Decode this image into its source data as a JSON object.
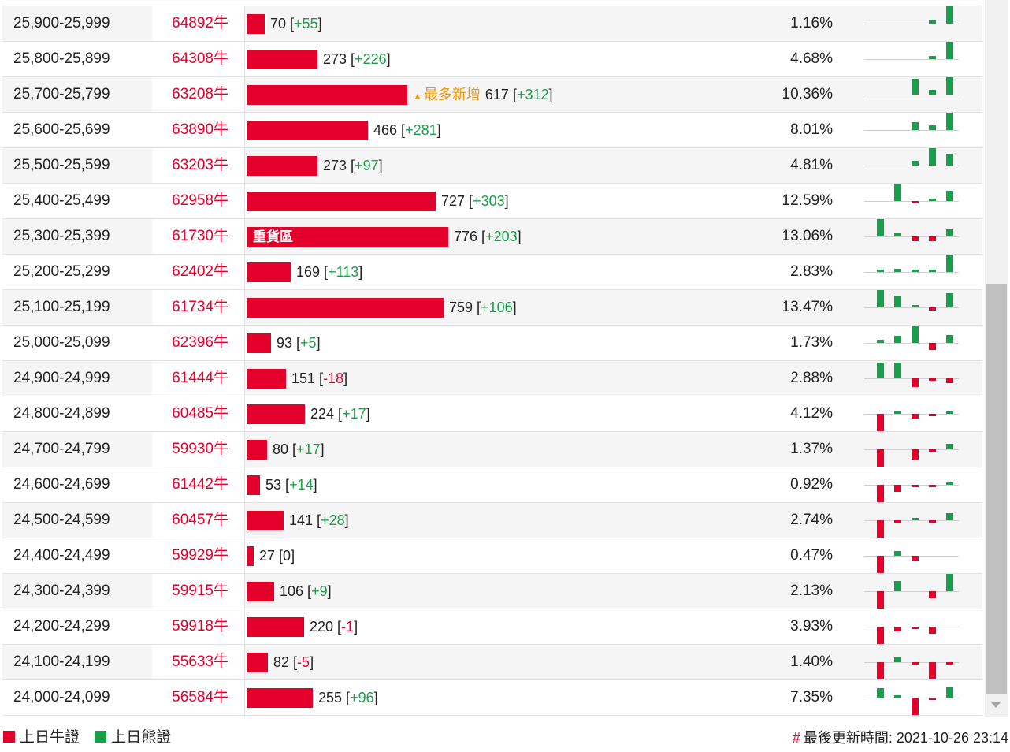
{
  "colors": {
    "bull": "#e4002b",
    "bear": "#1b9e4b",
    "highlight": "#f39800"
  },
  "rows": [
    {
      "range": "25,900-25,999",
      "code": "64892牛",
      "qty": 70,
      "delta": "+55",
      "pct": "1.16%",
      "label": "",
      "tag": "",
      "spark": [
        0,
        0,
        0,
        0.2,
        1
      ]
    },
    {
      "range": "25,800-25,899",
      "code": "64308牛",
      "qty": 273,
      "delta": "+226",
      "pct": "4.68%",
      "label": "",
      "tag": "",
      "spark": [
        0,
        0,
        0,
        0.2,
        1
      ]
    },
    {
      "range": "25,700-25,799",
      "code": "63208牛",
      "qty": 617,
      "delta": "+312",
      "pct": "10.36%",
      "label": "",
      "tag": "最多新增",
      "spark": [
        0,
        0,
        0.9,
        0.25,
        1
      ]
    },
    {
      "range": "25,600-25,699",
      "code": "63890牛",
      "qty": 466,
      "delta": "+281",
      "pct": "8.01%",
      "label": "",
      "tag": "",
      "spark": [
        0,
        0,
        0.45,
        0.25,
        1
      ]
    },
    {
      "range": "25,500-25,599",
      "code": "63203牛",
      "qty": 273,
      "delta": "+97",
      "pct": "4.81%",
      "label": "",
      "tag": "",
      "spark": [
        0,
        0,
        0.25,
        1,
        0.7
      ]
    },
    {
      "range": "25,400-25,499",
      "code": "62958牛",
      "qty": 727,
      "delta": "+303",
      "pct": "12.59%",
      "label": "",
      "tag": "",
      "spark": [
        0,
        1,
        -0.1,
        0.05,
        0.6
      ]
    },
    {
      "range": "25,300-25,399",
      "code": "61730牛",
      "qty": 776,
      "delta": "+203",
      "pct": "13.06%",
      "label": "重貨區",
      "tag": "",
      "spark": [
        1,
        0.2,
        -0.25,
        -0.25,
        0.4
      ]
    },
    {
      "range": "25,200-25,299",
      "code": "62402牛",
      "qty": 169,
      "delta": "+113",
      "pct": "2.83%",
      "label": "",
      "tag": "",
      "spark": [
        0.1,
        0.2,
        0.1,
        0.1,
        1
      ]
    },
    {
      "range": "25,100-25,199",
      "code": "61734牛",
      "qty": 759,
      "delta": "+106",
      "pct": "13.47%",
      "label": "",
      "tag": "",
      "spark": [
        1,
        0.7,
        0.1,
        -0.2,
        0.8
      ]
    },
    {
      "range": "25,000-25,099",
      "code": "62396牛",
      "qty": 93,
      "delta": "+5",
      "pct": "1.73%",
      "label": "",
      "tag": "",
      "spark": [
        0.2,
        0.4,
        1,
        -0.4,
        0.45
      ]
    },
    {
      "range": "24,900-24,999",
      "code": "61444牛",
      "qty": 151,
      "delta": "-18",
      "pct": "2.88%",
      "label": "",
      "tag": "",
      "spark": [
        0.9,
        0.9,
        -0.5,
        -0.15,
        -0.25
      ]
    },
    {
      "range": "24,800-24,899",
      "code": "60485牛",
      "qty": 224,
      "delta": "+17",
      "pct": "4.12%",
      "label": "",
      "tag": "",
      "spark": [
        -1,
        0.2,
        -0.25,
        -0.05,
        0.1
      ]
    },
    {
      "range": "24,700-24,799",
      "code": "59930牛",
      "qty": 80,
      "delta": "+17",
      "pct": "1.37%",
      "label": "",
      "tag": "",
      "spark": [
        -1,
        0,
        -0.6,
        -0.2,
        0.3
      ]
    },
    {
      "range": "24,600-24,699",
      "code": "61442牛",
      "qty": 53,
      "delta": "+14",
      "pct": "0.92%",
      "label": "",
      "tag": "",
      "spark": [
        -1,
        -0.4,
        -0.1,
        -0.1,
        0.05
      ]
    },
    {
      "range": "24,500-24,599",
      "code": "60457牛",
      "qty": 141,
      "delta": "+28",
      "pct": "2.74%",
      "label": "",
      "tag": "",
      "spark": [
        -1,
        -0.1,
        0.05,
        -0.05,
        0.4
      ]
    },
    {
      "range": "24,400-24,499",
      "code": "59929牛",
      "qty": 27,
      "delta": "0",
      "pct": "0.47%",
      "label": "",
      "tag": "",
      "spark": [
        -1,
        0.25,
        -0.3,
        0,
        0
      ]
    },
    {
      "range": "24,300-24,399",
      "code": "59915牛",
      "qty": 106,
      "delta": "+9",
      "pct": "2.13%",
      "label": "",
      "tag": "",
      "spark": [
        -1,
        0.6,
        0,
        -0.4,
        1
      ]
    },
    {
      "range": "24,200-24,299",
      "code": "59918牛",
      "qty": 220,
      "delta": "-1",
      "pct": "3.93%",
      "label": "",
      "tag": "",
      "spark": [
        -1,
        -0.25,
        -0.1,
        -0.4,
        0
      ]
    },
    {
      "range": "24,100-24,199",
      "code": "55633牛",
      "qty": 82,
      "delta": "-5",
      "pct": "1.40%",
      "label": "",
      "tag": "",
      "spark": [
        -1,
        0.25,
        -0.1,
        -1,
        -0.15
      ]
    },
    {
      "range": "24,000-24,099",
      "code": "56584牛",
      "qty": 255,
      "delta": "+96",
      "pct": "7.35%",
      "label": "",
      "tag": "",
      "spark": [
        0.55,
        0.05,
        -1,
        -0.05,
        0.6
      ]
    }
  ],
  "legend": {
    "bull": "上日牛證",
    "bear": "上日熊證"
  },
  "footer": {
    "hash": "#",
    "updated_label": "最後更新時間:",
    "updated_value": "2021-10-26 23:14"
  }
}
